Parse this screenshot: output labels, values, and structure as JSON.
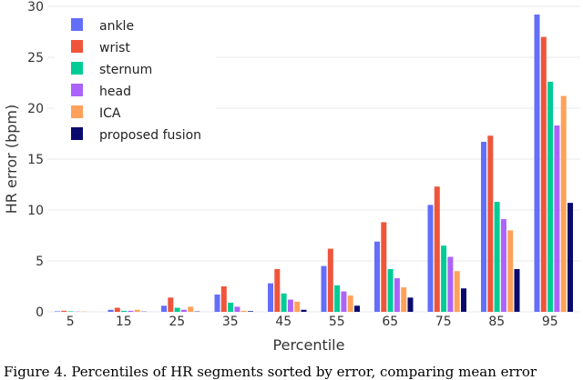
{
  "chart_data": {
    "type": "bar",
    "xlabel": "Percentile",
    "ylabel": "HR error (bpm)",
    "ylim": [
      0,
      30
    ],
    "yticks": [
      0,
      5,
      10,
      15,
      20,
      25,
      30
    ],
    "categories": [
      "5",
      "15",
      "25",
      "35",
      "45",
      "55",
      "65",
      "75",
      "85",
      "95"
    ],
    "grid": true,
    "legend_position": "top-left",
    "series": [
      {
        "name": "ankle",
        "color": "#636efa",
        "values": [
          0.05,
          0.2,
          0.6,
          1.7,
          2.8,
          4.5,
          6.9,
          10.5,
          16.7,
          29.2
        ]
      },
      {
        "name": "wrist",
        "color": "#ef553b",
        "values": [
          0.1,
          0.4,
          1.4,
          2.5,
          4.2,
          6.2,
          8.8,
          12.3,
          17.3,
          27.0
        ]
      },
      {
        "name": "sternum",
        "color": "#00cc96",
        "values": [
          0.05,
          0.1,
          0.4,
          0.9,
          1.8,
          2.6,
          4.2,
          6.5,
          10.8,
          22.6
        ]
      },
      {
        "name": "head",
        "color": "#ab63fa",
        "values": [
          0.02,
          0.1,
          0.2,
          0.5,
          1.2,
          2.0,
          3.3,
          5.4,
          9.1,
          18.3
        ]
      },
      {
        "name": "ICA",
        "color": "#ffa15a",
        "values": [
          0.03,
          0.2,
          0.5,
          0.1,
          1.0,
          1.6,
          2.4,
          4.0,
          8.0,
          21.2
        ]
      },
      {
        "name": "proposed fusion",
        "color": "#0a0a6e",
        "values": [
          0.0,
          0.02,
          0.03,
          0.06,
          0.2,
          0.6,
          1.4,
          2.3,
          4.2,
          10.7
        ]
      }
    ]
  },
  "caption": "Figure 4.  Percentiles of HR segments sorted by error, comparing mean error"
}
